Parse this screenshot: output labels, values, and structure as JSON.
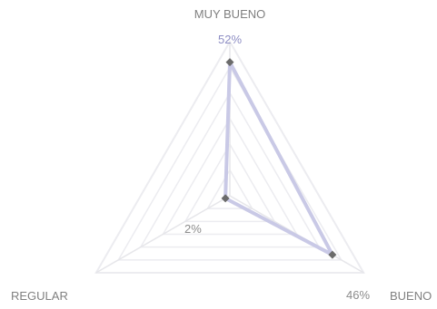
{
  "chart_data": {
    "type": "radar",
    "categories": [
      "MUY BUENO",
      "BUENO",
      "REGULAR"
    ],
    "series": [
      {
        "values": [
          52,
          46,
          2
        ]
      }
    ],
    "value_labels": [
      "52%",
      "46%",
      "2%"
    ],
    "rlim": [
      0,
      60
    ],
    "grid_rings": 6,
    "grid": true,
    "legend": "none",
    "colors": {
      "series_line": "#c9c9e6",
      "marker": "#6b6b6b",
      "grid": "#ececf0",
      "axis": "#e6e6ea",
      "label": "#808080",
      "value_label_top": "#8e8ec4",
      "value_label": "#8c8c8c"
    }
  }
}
